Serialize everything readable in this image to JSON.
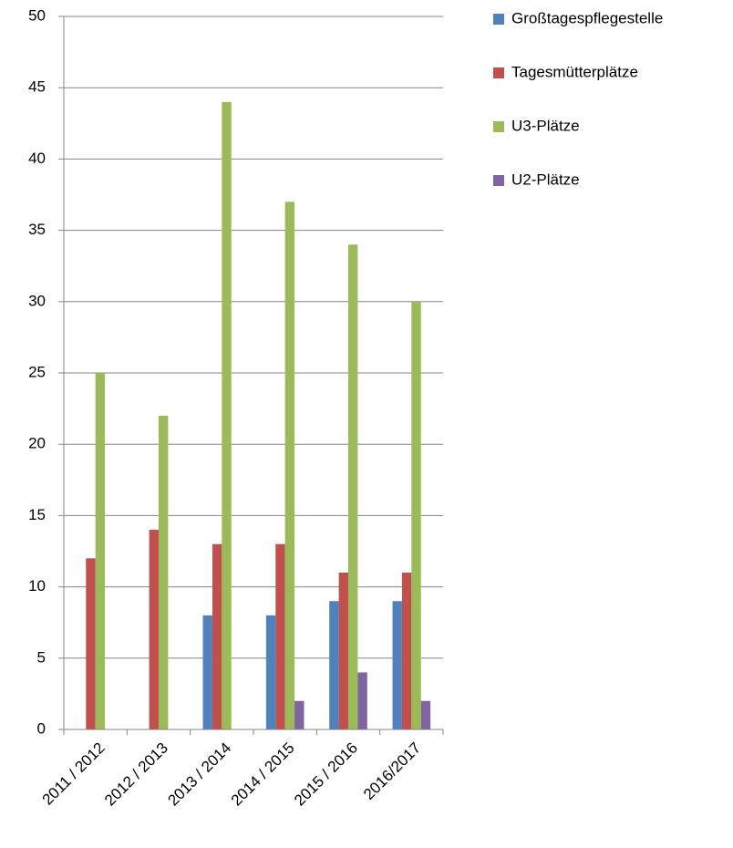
{
  "chart_data": {
    "type": "bar",
    "categories": [
      "2011 / 2012",
      "2012 / 2013",
      "2013 / 2014",
      "2014 / 2015",
      "2015 / 2016",
      "2016/2017"
    ],
    "series": [
      {
        "name": "Großtagespflegestelle",
        "color": "#4f81bd",
        "values": [
          0,
          0,
          8,
          8,
          9,
          9
        ]
      },
      {
        "name": "Tagesmütterplätze",
        "color": "#c0504d",
        "values": [
          12,
          14,
          13,
          13,
          11,
          11
        ]
      },
      {
        "name": "U3-Plätze",
        "color": "#9bbb59",
        "values": [
          25,
          22,
          44,
          37,
          34,
          30
        ]
      },
      {
        "name": "U2-Plätze",
        "color": "#8064a2",
        "values": [
          0,
          0,
          0,
          2,
          4,
          2
        ]
      }
    ],
    "ylim": [
      0,
      50
    ],
    "yticks": [
      0,
      5,
      10,
      15,
      20,
      25,
      30,
      35,
      40,
      45,
      50
    ],
    "grid": true,
    "legend": "right"
  }
}
